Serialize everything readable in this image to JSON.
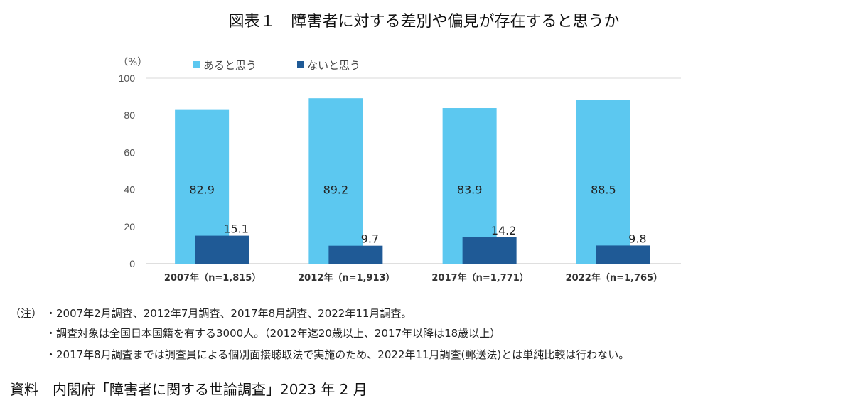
{
  "title": "図表１　障害者に対する差別や偏見が存在すると思うか",
  "chart_data": {
    "type": "bar",
    "ylabel": "（%）",
    "ylim": [
      0,
      100
    ],
    "yticks": [
      0,
      20,
      40,
      60,
      80,
      100
    ],
    "categories": [
      "2007年（n=1,815）",
      "2012年（n=1,913）",
      "2017年（n=1,771）",
      "2022年（n=1,765）"
    ],
    "series": [
      {
        "name": "あると思う",
        "values": [
          82.9,
          89.2,
          83.9,
          88.5
        ],
        "color": "#5CC8F0"
      },
      {
        "name": "ないと思う",
        "values": [
          15.1,
          9.7,
          14.2,
          9.8
        ],
        "color": "#1F5A96"
      }
    ],
    "legend": "top",
    "grid": false
  },
  "notes": {
    "label": "（注）",
    "lines": [
      "・2007年2月調査、2012年7月調査、2017年8月調査、2022年11月調査。",
      "・調査対象は全国日本国籍を有する3000人。（2012年迄20歳以上、2017年以降は18歳以上）",
      "・2017年8月調査までは調査員による個別面接聴取法で実施のため、2022年11月調査(郵送法)とは単純比較は行わない。"
    ]
  },
  "source": "資料　内閣府「障害者に関する世論調査」2023 年 2 月"
}
